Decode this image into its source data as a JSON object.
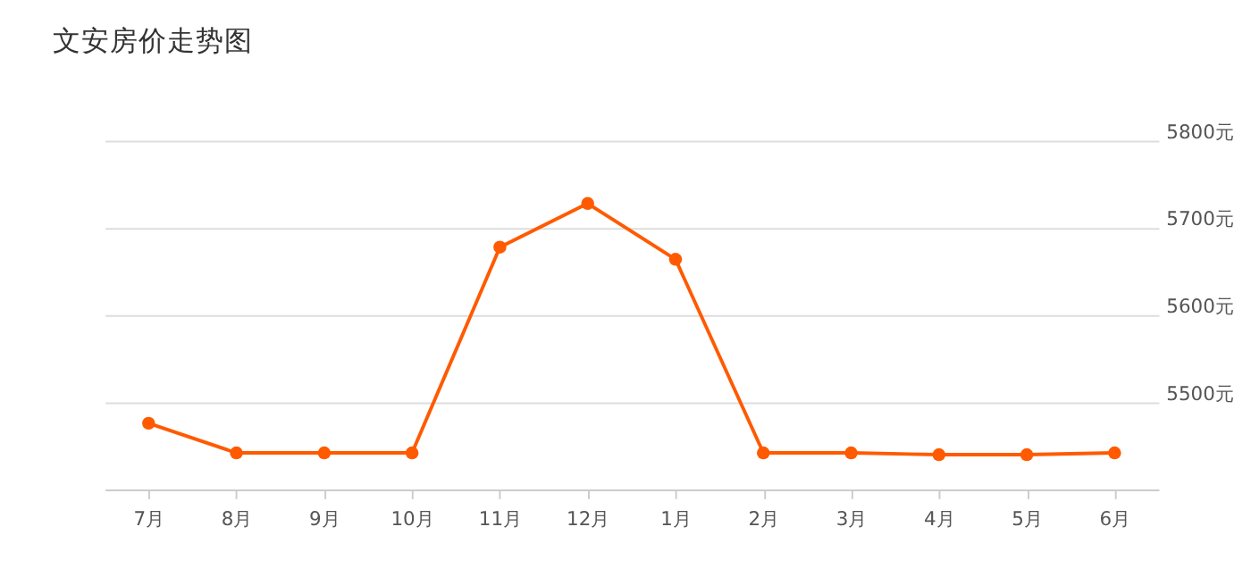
{
  "chart_data": {
    "type": "line",
    "title": "文安房价走势图",
    "categories": [
      "7月",
      "8月",
      "9月",
      "10月",
      "11月",
      "12月",
      "1月",
      "2月",
      "3月",
      "4月",
      "5月",
      "6月"
    ],
    "series": [
      {
        "color": "#ff5a00",
        "values": [
          5476,
          5442,
          5442,
          5442,
          5678,
          5728,
          5664,
          5442,
          5442,
          5440,
          5440,
          5442
        ]
      }
    ],
    "ylim": [
      5400,
      5800
    ],
    "yticks": [
      {
        "value": 5500,
        "label": "5500元"
      },
      {
        "value": 5600,
        "label": "5600元"
      },
      {
        "value": 5700,
        "label": "5700元"
      },
      {
        "value": 5800,
        "label": "5800元"
      }
    ],
    "grid": "y",
    "marker": "circle",
    "line_style": "solid"
  }
}
